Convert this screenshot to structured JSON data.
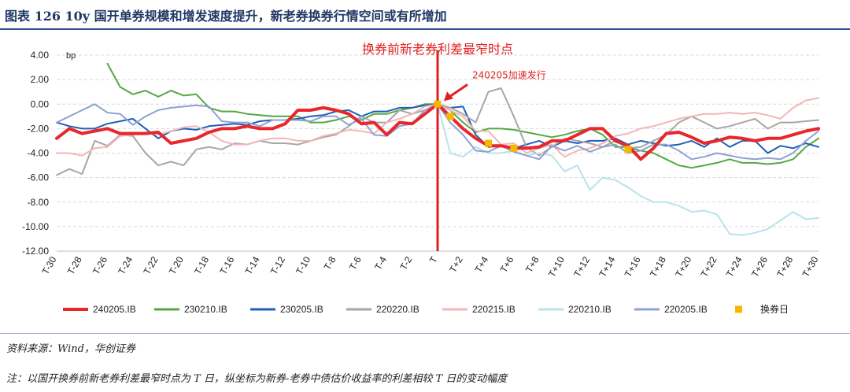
{
  "header": {
    "title": "图表 126   10y 国开单券规模和增发速度提升，新老券换券行情空间或有所增加"
  },
  "footer": {
    "source": "资料来源：Wind，华创证券",
    "note": "注：以国开换券前新老券利差最窄时点为 T 日，纵坐标为新券-老券中债估价收益率的利差相较 T 日的变动幅度"
  },
  "chart_data": {
    "type": "line",
    "y_unit": "bp",
    "ylim": [
      -12,
      4
    ],
    "yticks": [
      "4.00",
      "2.00",
      "0.00",
      "-2.00",
      "-4.00",
      "-6.00",
      "-8.00",
      "-10.00",
      "-12.00"
    ],
    "x": [
      "T-30",
      "T-29",
      "T-28",
      "T-27",
      "T-26",
      "T-25",
      "T-24",
      "T-23",
      "T-22",
      "T-21",
      "T-20",
      "T-19",
      "T-18",
      "T-17",
      "T-16",
      "T-15",
      "T-14",
      "T-13",
      "T-12",
      "T-11",
      "T-10",
      "T-9",
      "T-8",
      "T-7",
      "T-6",
      "T-5",
      "T-4",
      "T-3",
      "T-2",
      "T-1",
      "T",
      "T+1",
      "T+2",
      "T+3",
      "T+4",
      "T+5",
      "T+6",
      "T+7",
      "T+8",
      "T+9",
      "T+10",
      "T+11",
      "T+12",
      "T+13",
      "T+14",
      "T+15",
      "T+16",
      "T+17",
      "T+18",
      "T+19",
      "T+20",
      "T+21",
      "T+22",
      "T+23",
      "T+24",
      "T+25",
      "T+26",
      "T+27",
      "T+28",
      "T+29",
      "T+30"
    ],
    "x_tick_labels": [
      "T-30",
      "T-28",
      "T-26",
      "T-24",
      "T-22",
      "T-20",
      "T-18",
      "T-16",
      "T-14",
      "T-12",
      "T-10",
      "T-8",
      "T-6",
      "T-4",
      "T-2",
      "T",
      "T+2",
      "T+4",
      "T+6",
      "T+8",
      "T+10",
      "T+12",
      "T+14",
      "T+16",
      "T+18",
      "T+20",
      "T+22",
      "T+24",
      "T+26",
      "T+28",
      "T+30"
    ],
    "vline_at": "T",
    "vline_label": "换券前新老券利差最窄时点",
    "annotation": {
      "text": "240205加速发行",
      "at": "T"
    },
    "series": [
      {
        "name": "240205.IB",
        "color": "#e8262b",
        "width": 4,
        "values": [
          -2.8,
          -2.0,
          -2.4,
          -2.2,
          -2.0,
          -2.4,
          -2.4,
          -2.4,
          -2.3,
          -3.2,
          -3.0,
          -2.8,
          -2.3,
          -2.0,
          -2.0,
          -1.8,
          -2.0,
          -2.0,
          -1.6,
          -0.5,
          -0.5,
          -0.3,
          -0.5,
          -0.8,
          -1.6,
          -1.5,
          -2.5,
          -1.5,
          -1.6,
          -0.8,
          0.0,
          -1.0,
          -2.0,
          -2.8,
          -3.4,
          -3.4,
          -3.6,
          -3.6,
          -3.5,
          -3.0,
          -3.0,
          -2.5,
          -2.0,
          -2.0,
          -3.0,
          -3.4,
          -4.5,
          -3.6,
          -2.4,
          -2.3,
          -2.7,
          -3.2,
          -3.0,
          -2.7,
          -2.8,
          -3.0,
          -2.8,
          -2.8,
          -2.5,
          -2.2,
          -2.0
        ]
      },
      {
        "name": "230210.IB",
        "color": "#54a840",
        "width": 2,
        "values": [
          null,
          null,
          null,
          null,
          3.3,
          1.4,
          0.8,
          1.1,
          0.6,
          1.1,
          0.7,
          0.8,
          -0.3,
          -0.6,
          -0.6,
          -0.8,
          -0.9,
          -1.0,
          -1.0,
          -1.0,
          -1.5,
          -1.5,
          -1.3,
          -1.0,
          -1.3,
          -0.8,
          -0.8,
          -0.5,
          -0.3,
          0.0,
          0.0,
          -0.5,
          -1.5,
          -2.3,
          -2.0,
          -2.0,
          -2.1,
          -2.3,
          -2.5,
          -2.7,
          -2.5,
          -2.2,
          -2.0,
          -2.5,
          -3.5,
          -3.5,
          -3.8,
          -4.0,
          -4.5,
          -5.0,
          -5.2,
          -5.0,
          -4.8,
          -4.5,
          -4.8,
          -4.8,
          -4.9,
          -4.8,
          -4.5,
          -3.5,
          -2.8
        ]
      },
      {
        "name": "230205.IB",
        "color": "#1f5fb5",
        "width": 2,
        "values": [
          -1.5,
          -1.8,
          -2.0,
          -2.0,
          -1.6,
          -1.4,
          -1.2,
          -2.0,
          -2.8,
          -2.2,
          -2.0,
          -2.1,
          -1.8,
          -1.7,
          -1.6,
          -1.7,
          -1.4,
          -1.3,
          -1.3,
          -1.2,
          -1.0,
          -0.9,
          -0.6,
          -0.5,
          -1.0,
          -0.6,
          -0.6,
          -0.3,
          -0.3,
          -0.1,
          0.0,
          -0.3,
          -0.2,
          -2.5,
          -3.5,
          -3.4,
          -3.6,
          -3.3,
          -3.0,
          -3.5,
          -3.0,
          -3.2,
          -3.0,
          -3.0,
          -2.8,
          -3.3,
          -3.0,
          -3.2,
          -3.4,
          -3.3,
          -3.0,
          -3.5,
          -2.8,
          -3.5,
          -3.0,
          -3.0,
          -4.0,
          -3.4,
          -3.6,
          -3.2,
          -3.5
        ]
      },
      {
        "name": "220220.IB",
        "color": "#a6a6a6",
        "width": 2,
        "values": [
          -5.8,
          -5.3,
          -5.7,
          -3.0,
          -3.4,
          -2.5,
          -2.6,
          -4.0,
          -5.0,
          -4.7,
          -5.0,
          -3.7,
          -3.5,
          -3.7,
          -3.2,
          -3.3,
          -3.0,
          -3.2,
          -3.2,
          -3.3,
          -3.0,
          -2.7,
          -2.5,
          -1.8,
          -1.0,
          -1.5,
          -1.5,
          -0.5,
          -0.8,
          -0.5,
          0.0,
          -0.3,
          -0.8,
          -1.5,
          1.0,
          1.3,
          -1.0,
          -3.5,
          -4.2,
          -3.5,
          -2.8,
          -3.0,
          -3.2,
          -3.5,
          -3.0,
          -3.6,
          -3.5,
          -3.0,
          -2.5,
          -1.5,
          -1.0,
          -1.5,
          -2.0,
          -1.8,
          -1.5,
          -1.2,
          -2.0,
          -1.5,
          -1.5,
          -1.4,
          -1.3
        ]
      },
      {
        "name": "220215.IB",
        "color": "#f2b6b8",
        "width": 2,
        "values": [
          -4.0,
          -4.0,
          -4.2,
          -3.6,
          -3.5,
          -2.6,
          -2.5,
          -2.3,
          -2.5,
          -2.2,
          -1.9,
          -1.8,
          -2.3,
          -3.0,
          -3.3,
          -3.3,
          -3.0,
          -2.8,
          -2.8,
          -3.0,
          -3.0,
          -2.6,
          -2.4,
          -2.1,
          -2.2,
          -2.4,
          -1.5,
          -1.2,
          -0.8,
          -0.2,
          0.0,
          -0.5,
          -1.0,
          -2.2,
          -2.2,
          -3.3,
          -3.2,
          -4.0,
          -3.6,
          -3.3,
          -4.3,
          -3.8,
          -3.6,
          -3.2,
          -2.6,
          -2.4,
          -2.0,
          -1.8,
          -1.5,
          -1.2,
          -1.0,
          -0.8,
          -0.8,
          -0.7,
          -0.8,
          -0.7,
          -0.9,
          -1.2,
          -0.3,
          0.3,
          0.5
        ]
      },
      {
        "name": "220210.IB",
        "color": "#b9e3ea",
        "width": 2,
        "values": [
          null,
          null,
          null,
          null,
          null,
          null,
          null,
          null,
          null,
          null,
          null,
          null,
          null,
          null,
          null,
          null,
          null,
          null,
          null,
          null,
          null,
          null,
          null,
          null,
          null,
          null,
          null,
          null,
          null,
          null,
          0.0,
          -4.0,
          -4.3,
          -3.5,
          -4.0,
          -4.0,
          -3.8,
          -4.2,
          -4.0,
          -4.2,
          -5.5,
          -5.0,
          -7.0,
          -6.0,
          -6.2,
          -6.8,
          -7.5,
          -8.0,
          -8.0,
          -8.3,
          -8.8,
          -8.7,
          -9.0,
          -10.6,
          -10.7,
          -10.5,
          -10.2,
          -9.5,
          -8.8,
          -9.4,
          -9.3
        ]
      },
      {
        "name": "220205.IB",
        "color": "#8ea1d3",
        "width": 2,
        "values": [
          -1.5,
          -1.0,
          -0.5,
          0.0,
          -0.7,
          -0.8,
          -1.7,
          -1.0,
          -0.5,
          -0.3,
          -0.2,
          -0.1,
          -0.2,
          -1.4,
          -1.5,
          -1.5,
          -1.8,
          -1.3,
          -1.3,
          -1.3,
          -1.4,
          -1.0,
          -1.0,
          -1.7,
          -1.2,
          -2.5,
          -2.6,
          -1.8,
          -1.6,
          -0.5,
          0.0,
          -1.5,
          -2.5,
          -3.8,
          -3.9,
          -3.4,
          -3.9,
          -4.2,
          -4.5,
          -3.4,
          -3.8,
          -3.4,
          -3.9,
          -3.5,
          -3.3,
          -4.0,
          -3.8,
          -3.3,
          -3.3,
          -3.8,
          -4.5,
          -4.3,
          -4.0,
          -4.2,
          -4.4,
          -4.5,
          -4.4,
          -4.5,
          -4.0,
          -3.0,
          -2.2
        ]
      }
    ],
    "markers": {
      "name": "换券日",
      "color": "#f5b800",
      "points": [
        {
          "x": "T",
          "y": 0.0
        },
        {
          "x": "T+1",
          "y": -1.0
        },
        {
          "x": "T+4",
          "y": -3.2
        },
        {
          "x": "T+6",
          "y": -3.6
        },
        {
          "x": "T+15",
          "y": -3.7
        }
      ]
    }
  }
}
